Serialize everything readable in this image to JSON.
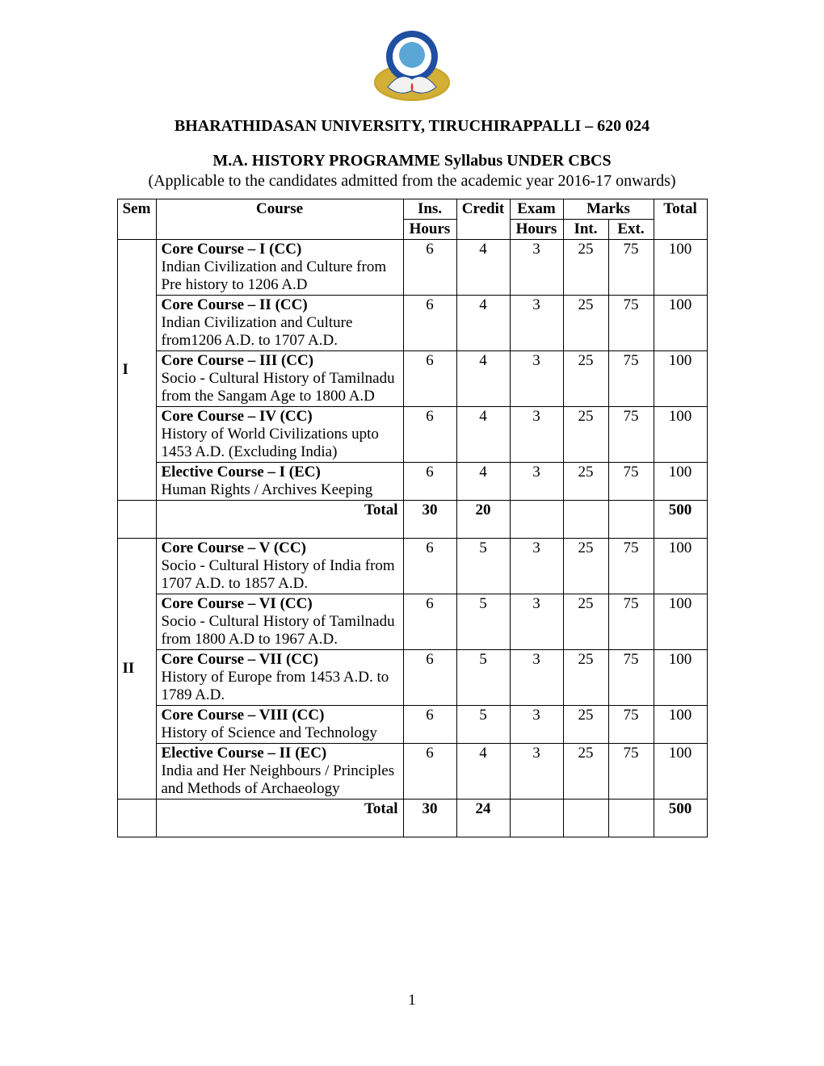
{
  "logo": {
    "outer_stroke": "#c9a227",
    "outer_fill": "#d4af37",
    "ring_fill": "#1f4fa1",
    "inner_fill": "#ffffff",
    "lotus_fill": "#f2f2f2",
    "lotus_stroke": "#1f4fa1",
    "portrait_fill": "#5aa7d6",
    "flame": "#e03a2f"
  },
  "header": {
    "university": "BHARATHIDASAN UNIVERSITY, TIRUCHIRAPPALLI – 620 024",
    "programme": "M.A. HISTORY PROGRAMME Syllabus UNDER CBCS",
    "applicable": "(Applicable to the candidates admitted from the academic year 2016-17 onwards)"
  },
  "columns": {
    "sem": "Sem",
    "course": "Course",
    "ins": "Ins.",
    "hours": "Hours",
    "credit": "Credit",
    "exam": "Exam",
    "exam_hours": "Hours",
    "marks": "Marks",
    "int": "Int.",
    "ext": "Ext.",
    "total": "Total"
  },
  "col_widths": {
    "sem": 48,
    "course": 306,
    "ins": 66,
    "credit": 66,
    "exam": 66,
    "int": 56,
    "ext": 56,
    "total": 66
  },
  "semesters": [
    {
      "label": "I",
      "courses": [
        {
          "title": "Core Course – I (CC)",
          "desc": "Indian Civilization and Culture from Pre history to 1206 A.D",
          "ins": "6",
          "credit": "4",
          "exam": "3",
          "int": "25",
          "ext": "75",
          "total": "100"
        },
        {
          "title": "Core Course – II (CC)",
          "desc": "Indian Civilization and Culture from1206 A.D.  to 1707 A.D.",
          "ins": "6",
          "credit": "4",
          "exam": "3",
          "int": "25",
          "ext": "75",
          "total": "100"
        },
        {
          "title": "Core Course – III (CC)",
          "desc": "Socio - Cultural History of Tamilnadu from the Sangam Age to 1800 A.D",
          "ins": "6",
          "credit": "4",
          "exam": "3",
          "int": "25",
          "ext": "75",
          "total": "100"
        },
        {
          "title": "Core Course – IV (CC)",
          "desc": "History of World Civilizations upto 1453 A.D.  (Excluding India)",
          "ins": "6",
          "credit": "4",
          "exam": "3",
          "int": "25",
          "ext": "75",
          "total": "100"
        },
        {
          "title": "Elective Course – I (EC)",
          "desc": "Human Rights / Archives Keeping",
          "ins": "6",
          "credit": "4",
          "exam": "3",
          "int": "25",
          "ext": "75",
          "total": "100"
        }
      ],
      "total": {
        "label": "Total",
        "ins": "30",
        "credit": "20",
        "total": "500"
      }
    },
    {
      "label": "II",
      "courses": [
        {
          "title": "Core Course – V (CC)",
          "desc": "Socio - Cultural History of India from 1707 A.D. to 1857 A.D.",
          "ins": "6",
          "credit": "5",
          "exam": "3",
          "int": "25",
          "ext": "75",
          "total": "100"
        },
        {
          "title": "Core Course – VI (CC)",
          "desc": "Socio - Cultural History of Tamilnadu from 1800 A.D to 1967 A.D.",
          "ins": "6",
          "credit": "5",
          "exam": "3",
          "int": "25",
          "ext": "75",
          "total": "100"
        },
        {
          "title": "Core Course – VII (CC)",
          "desc": "History of Europe from 1453 A.D. to 1789 A.D.",
          "ins": "6",
          "credit": "5",
          "exam": "3",
          "int": "25",
          "ext": "75",
          "total": "100"
        },
        {
          "title": "Core Course – VIII (CC)",
          "desc": "History of Science and Technology",
          "ins": "6",
          "credit": "5",
          "exam": "3",
          "int": "25",
          "ext": "75",
          "total": "100"
        },
        {
          "title": "Elective Course – II (EC)",
          "desc": "India and Her Neighbours / Principles and Methods of Archaeology",
          "ins": "6",
          "credit": "4",
          "exam": "3",
          "int": "25",
          "ext": "75",
          "total": "100"
        }
      ],
      "total": {
        "label": "Total",
        "ins": "30",
        "credit": "24",
        "total": "500"
      }
    }
  ],
  "page_number": "1"
}
